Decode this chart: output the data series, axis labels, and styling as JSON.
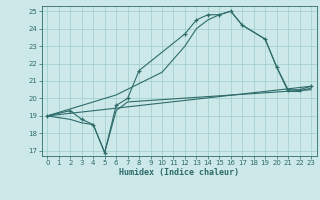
{
  "xlabel": "Humidex (Indice chaleur)",
  "bg_color": "#cde8e8",
  "line_color": "#2e6b6b",
  "grid_color": "#a0cccc",
  "xlim": [
    -0.5,
    23.5
  ],
  "ylim": [
    16.7,
    25.3
  ],
  "xticks": [
    0,
    1,
    2,
    3,
    4,
    5,
    6,
    7,
    8,
    9,
    10,
    11,
    12,
    13,
    14,
    15,
    16,
    17,
    18,
    19,
    20,
    21,
    22,
    23
  ],
  "yticks": [
    17,
    18,
    19,
    20,
    21,
    22,
    23,
    24,
    25
  ],
  "series": [
    {
      "x": [
        0,
        2,
        3,
        4,
        5,
        6,
        7,
        8,
        12,
        13,
        14,
        15,
        16,
        17,
        19,
        20,
        21,
        22,
        23
      ],
      "y": [
        19,
        19.3,
        18.8,
        18.5,
        16.9,
        19.6,
        20.0,
        21.6,
        23.7,
        24.5,
        24.8,
        24.8,
        25.0,
        24.2,
        23.4,
        21.8,
        20.5,
        20.5,
        20.7
      ],
      "marker": "+"
    },
    {
      "x": [
        0,
        6,
        10,
        12,
        13,
        14,
        15,
        16,
        17,
        19,
        20,
        21,
        22,
        23
      ],
      "y": [
        19,
        20.2,
        21.5,
        23.0,
        24.0,
        24.5,
        24.8,
        25.0,
        24.2,
        23.4,
        21.8,
        20.4,
        20.4,
        20.6
      ],
      "marker": null
    },
    {
      "x": [
        0,
        23
      ],
      "y": [
        19.0,
        20.7
      ],
      "marker": null
    },
    {
      "x": [
        0,
        2,
        3,
        4,
        5,
        6,
        7,
        23
      ],
      "y": [
        19,
        18.8,
        18.6,
        18.5,
        16.9,
        19.3,
        19.8,
        20.5
      ],
      "marker": null
    }
  ]
}
